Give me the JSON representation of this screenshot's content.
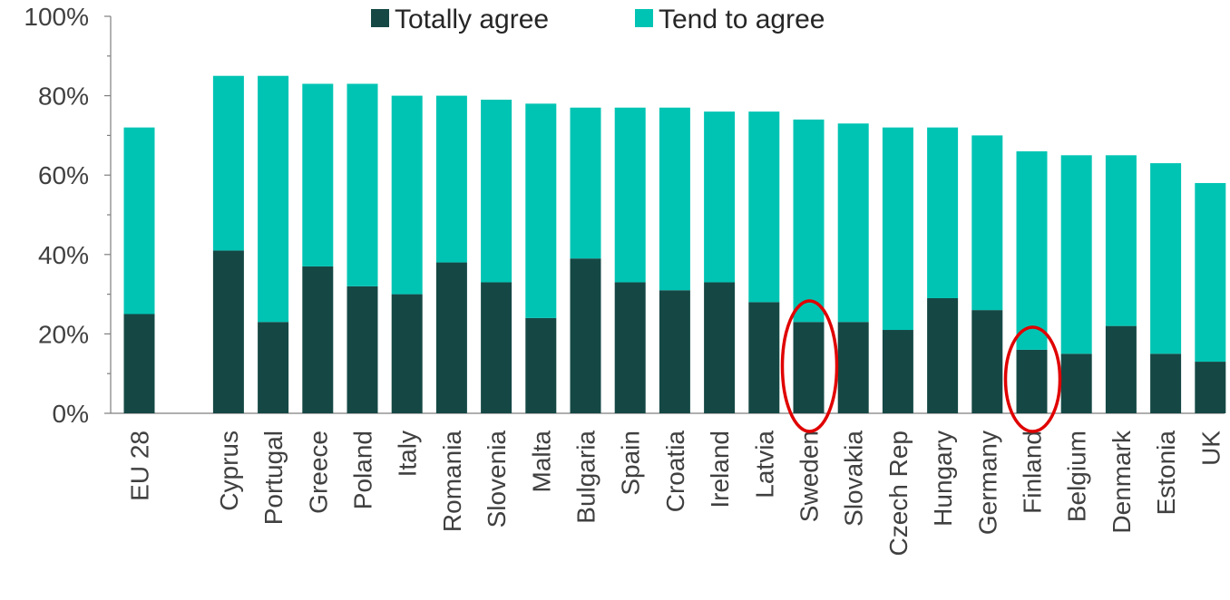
{
  "chart_data": {
    "type": "bar",
    "stacked": true,
    "legend_position": "top",
    "grid": false,
    "ylim": [
      0,
      100
    ],
    "yticks": [
      "0%",
      "20%",
      "40%",
      "60%",
      "80%",
      "100%"
    ],
    "categories": [
      "EU 28",
      "Cyprus",
      "Portugal",
      "Greece",
      "Poland",
      "Italy",
      "Romania",
      "Slovenia",
      "Malta",
      "Bulgaria",
      "Spain",
      "Croatia",
      "Ireland",
      "Latvia",
      "Sweden",
      "Slovakia",
      "Czech Rep",
      "Hungary",
      "Germany",
      "Finland",
      "Belgium",
      "Denmark",
      "Estonia",
      "UK"
    ],
    "series": [
      {
        "name": "Totally agree",
        "color": "#154845",
        "values": [
          25,
          41,
          23,
          37,
          32,
          30,
          38,
          33,
          24,
          39,
          33,
          31,
          33,
          28,
          23,
          23,
          21,
          29,
          26,
          16,
          15,
          22,
          15,
          13
        ]
      },
      {
        "name": "Tend to agree",
        "color": "#00c4b3",
        "values": [
          47,
          44,
          62,
          46,
          51,
          50,
          42,
          46,
          54,
          38,
          44,
          46,
          43,
          48,
          51,
          50,
          51,
          43,
          44,
          50,
          50,
          43,
          48,
          45
        ]
      }
    ],
    "highlighted_categories": [
      "Sweden",
      "Finland"
    ],
    "highlight_color": "#e00000"
  }
}
